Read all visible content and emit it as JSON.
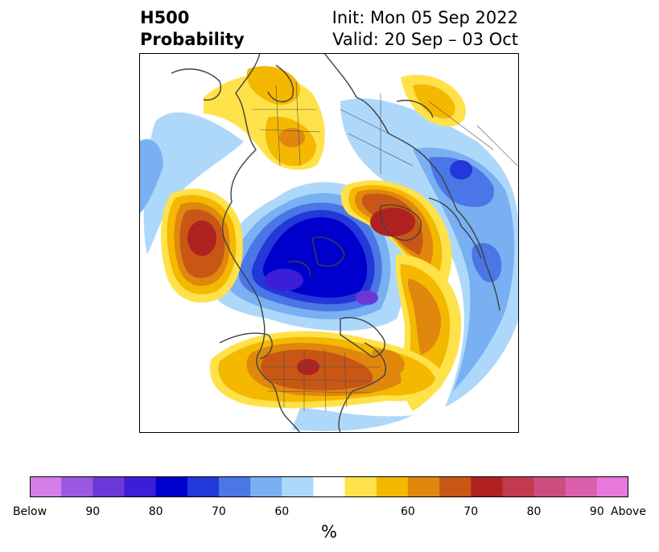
{
  "header": {
    "title_line1": "H500",
    "title_line2": "Probability",
    "init_label": "Init: Mon 05 Sep 2022",
    "valid_label": "Valid: 20 Sep – 03 Oct"
  },
  "map": {
    "projection": "polar-stereographic",
    "field": "500 hPa height probability",
    "features": [
      {
        "type": "below",
        "region": "North Pole / Arctic Ocean",
        "level": "85+"
      },
      {
        "type": "above",
        "region": "Bering Sea / NE Pacific",
        "level": "80+"
      },
      {
        "type": "above",
        "region": "Scandinavia / Northern Europe",
        "level": "80+"
      },
      {
        "type": "above",
        "region": "Central United States",
        "level": "80+"
      },
      {
        "type": "above",
        "region": "Greenland / North Atlantic",
        "level": "65+"
      },
      {
        "type": "below",
        "region": "Western Siberia / Urals",
        "level": "65+"
      }
    ]
  },
  "colorbar": {
    "colors": [
      "#d67ee8",
      "#9b58e0",
      "#6b38d8",
      "#3c1ed6",
      "#0000cc",
      "#2338d8",
      "#4a76e6",
      "#78b0f2",
      "#aed8fa",
      "#ffffff",
      "#ffe24a",
      "#f4b800",
      "#e0870e",
      "#c85614",
      "#b02222",
      "#c23a4e",
      "#cc4e7e",
      "#da5eac",
      "#e878dc"
    ],
    "tick_labels": [
      "Below",
      "90",
      "80",
      "70",
      "60",
      "60",
      "70",
      "80",
      "90",
      "Above"
    ],
    "unit_label": "%"
  }
}
